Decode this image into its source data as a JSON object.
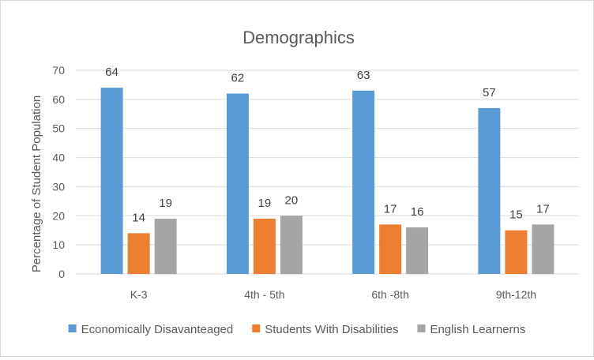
{
  "chart_data": {
    "type": "bar",
    "title": "Demographics",
    "xlabel": "",
    "ylabel": "Percentage of Student Population",
    "ylim": [
      0,
      70
    ],
    "yticks": [
      0,
      10,
      20,
      30,
      40,
      50,
      60,
      70
    ],
    "grid": true,
    "legend_position": "bottom",
    "categories": [
      "K-3",
      "4th - 5th",
      "6th -8th",
      "9th-12th"
    ],
    "series": [
      {
        "name": "Economically Disavanteaged",
        "color": "#5b9bd5",
        "values": [
          64,
          62,
          63,
          57
        ]
      },
      {
        "name": "Students With Disabilities",
        "color": "#ed7d31",
        "values": [
          14,
          19,
          17,
          15
        ]
      },
      {
        "name": "English Learnerns",
        "color": "#a5a5a5",
        "values": [
          19,
          20,
          16,
          17
        ]
      }
    ]
  }
}
